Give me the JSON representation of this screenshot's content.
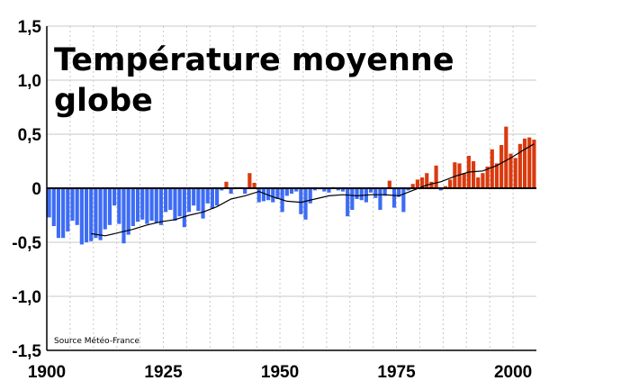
{
  "chart_data": {
    "type": "bar",
    "title_lines": [
      "Température moyenne",
      "globe"
    ],
    "source": "Source Météo-France",
    "xlabel": "",
    "ylabel": "",
    "x_ticks": [
      1900,
      1925,
      1950,
      1975,
      2000
    ],
    "y_ticks": [
      1.5,
      1.0,
      0.5,
      0,
      -0.5,
      -1.0,
      -1.5
    ],
    "y_tick_labels": [
      "1,5",
      "1,0",
      "0,5",
      "0",
      "-0,5",
      "-1,0",
      "-1,5"
    ],
    "xlim": [
      1900,
      2005
    ],
    "ylim": [
      -1.5,
      1.5
    ],
    "grid": true,
    "colors": {
      "positive": "#d93a0e",
      "negative": "#3d6cf5",
      "moving_average": "#000000",
      "grid": "#c8c8c8"
    },
    "series": [
      {
        "type": "bar",
        "x": [
          1900,
          1901,
          1902,
          1903,
          1904,
          1905,
          1906,
          1907,
          1908,
          1909,
          1910,
          1911,
          1912,
          1913,
          1914,
          1915,
          1916,
          1917,
          1918,
          1919,
          1920,
          1921,
          1922,
          1923,
          1924,
          1925,
          1926,
          1927,
          1928,
          1929,
          1930,
          1931,
          1932,
          1933,
          1934,
          1935,
          1936,
          1937,
          1938,
          1939,
          1940,
          1941,
          1942,
          1943,
          1944,
          1945,
          1946,
          1947,
          1948,
          1949,
          1950,
          1951,
          1952,
          1953,
          1954,
          1955,
          1956,
          1957,
          1958,
          1959,
          1960,
          1961,
          1962,
          1963,
          1964,
          1965,
          1966,
          1967,
          1968,
          1969,
          1970,
          1971,
          1972,
          1973,
          1974,
          1975,
          1976,
          1977,
          1978,
          1979,
          1980,
          1981,
          1982,
          1983,
          1984,
          1985,
          1986,
          1987,
          1988,
          1989,
          1990,
          1991,
          1992,
          1993,
          1994,
          1995,
          1996,
          1997,
          1998,
          1999,
          2000,
          2001,
          2002,
          2003,
          2004
        ],
        "values": [
          -0.27,
          -0.35,
          -0.46,
          -0.46,
          -0.4,
          -0.3,
          -0.34,
          -0.52,
          -0.5,
          -0.49,
          -0.46,
          -0.48,
          -0.38,
          -0.34,
          -0.16,
          -0.33,
          -0.51,
          -0.43,
          -0.35,
          -0.31,
          -0.29,
          -0.33,
          -0.3,
          -0.32,
          -0.34,
          -0.22,
          -0.2,
          -0.3,
          -0.26,
          -0.36,
          -0.22,
          -0.16,
          -0.21,
          -0.28,
          -0.14,
          -0.19,
          -0.16,
          -0.02,
          0.06,
          -0.05,
          0.01,
          0.01,
          -0.05,
          0.14,
          0.05,
          -0.13,
          -0.12,
          -0.11,
          -0.13,
          -0.1,
          -0.22,
          -0.07,
          -0.05,
          -0.03,
          -0.24,
          -0.29,
          -0.14,
          -0.02,
          -0.01,
          -0.03,
          -0.04,
          0.01,
          -0.02,
          -0.03,
          -0.26,
          -0.2,
          -0.1,
          -0.11,
          -0.13,
          -0.04,
          -0.09,
          -0.2,
          -0.07,
          0.07,
          -0.18,
          -0.08,
          -0.22,
          -0.02,
          0.04,
          0.08,
          0.1,
          0.14,
          0.06,
          0.21,
          -0.02,
          0.02,
          0.08,
          0.24,
          0.23,
          0.14,
          0.3,
          0.25,
          0.1,
          0.14,
          0.2,
          0.36,
          0.23,
          0.4,
          0.57,
          0.32,
          0.28,
          0.41,
          0.46,
          0.47,
          0.45
        ]
      },
      {
        "type": "line",
        "x": [
          1909,
          1912,
          1915,
          1918,
          1921,
          1924,
          1927,
          1930,
          1933,
          1936,
          1939,
          1942,
          1945,
          1948,
          1951,
          1954,
          1957,
          1960,
          1963,
          1966,
          1969,
          1972,
          1975,
          1978,
          1981,
          1984,
          1987,
          1990,
          1993,
          1996,
          1999,
          2002,
          2004
        ],
        "values": [
          -0.42,
          -0.44,
          -0.41,
          -0.38,
          -0.34,
          -0.31,
          -0.29,
          -0.25,
          -0.22,
          -0.17,
          -0.1,
          -0.07,
          -0.03,
          -0.08,
          -0.12,
          -0.13,
          -0.1,
          -0.07,
          -0.06,
          -0.07,
          -0.06,
          -0.06,
          -0.07,
          -0.02,
          0.03,
          0.06,
          0.11,
          0.15,
          0.16,
          0.21,
          0.28,
          0.36,
          0.41
        ]
      }
    ]
  }
}
